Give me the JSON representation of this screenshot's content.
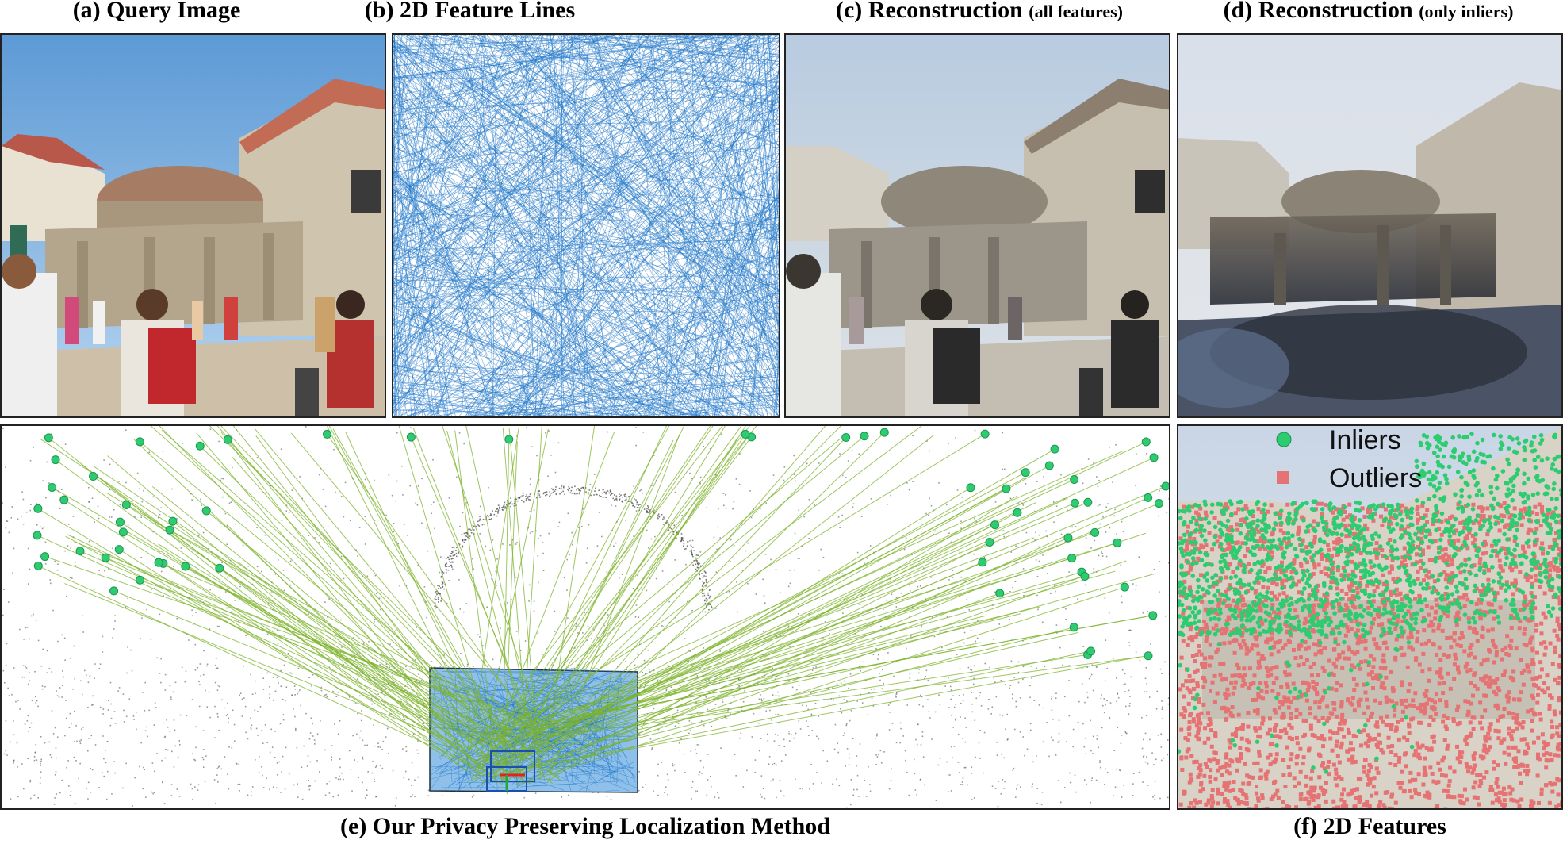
{
  "captions": {
    "a": "(a) Query Image",
    "b": "(b) 2D Feature Lines",
    "c_main": "(c) Reconstruction",
    "c_small": "(all features)",
    "d_main": "(d) Reconstruction",
    "d_small": "(only inliers)",
    "e": "(e) Our Privacy Preserving Localization Method",
    "f": "(f) 2D Features"
  },
  "legend": {
    "inliers": "Inliers",
    "outliers": "Outliers"
  },
  "colors": {
    "feature_line": "#1f77c9",
    "inlier": "#2ecc71",
    "outlier": "#e57373",
    "ray": "#7cb32b",
    "sky": "#a7c8e8",
    "stone": "#b8ad98"
  },
  "icons": {
    "camera": "camera-frustum-icon"
  }
}
